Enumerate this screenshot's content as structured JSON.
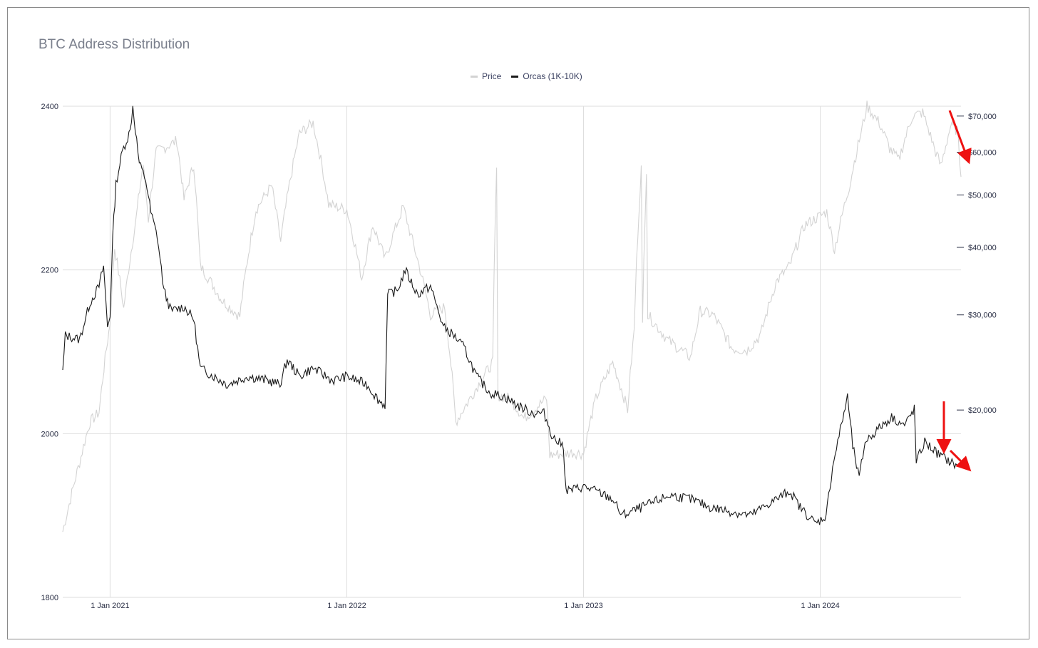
{
  "chart_data": {
    "type": "line",
    "title": "BTC Address Distribution",
    "x_tick_labels": [
      "1 Jan 2021",
      "1 Jan 2022",
      "1 Jan 2023",
      "1 Jan 2024"
    ],
    "xlim": [
      "2020-10-20",
      "2024-08-05"
    ],
    "y_left": {
      "range": [
        1800,
        2400
      ],
      "ticks": [
        1800,
        2000,
        2200,
        2400
      ]
    },
    "y_right": {
      "scale": "log",
      "range": [
        9000,
        73000
      ],
      "ticks": [
        20000,
        30000,
        40000,
        50000,
        60000,
        70000
      ],
      "tick_labels": [
        "$20,000",
        "$30,000",
        "$40,000",
        "$50,000",
        "$60,000",
        "$70,000"
      ]
    },
    "legend_position": "top-center",
    "grid": true,
    "colors": {
      "price": "#d3d3d3",
      "orcas": "#1a1a1a",
      "arrow": "#ee1111"
    },
    "series": [
      {
        "name": "Price",
        "axis": "right",
        "points": [
          [
            "2020-10-20",
            11900
          ],
          [
            "2020-11-01",
            13700
          ],
          [
            "2020-11-15",
            16000
          ],
          [
            "2020-12-01",
            19000
          ],
          [
            "2020-12-15",
            19800
          ],
          [
            "2021-01-01",
            29000
          ],
          [
            "2021-01-08",
            40000
          ],
          [
            "2021-01-22",
            30800
          ],
          [
            "2021-02-10",
            45000
          ],
          [
            "2021-02-21",
            57000
          ],
          [
            "2021-03-01",
            45000
          ],
          [
            "2021-03-13",
            60000
          ],
          [
            "2021-04-14",
            63000
          ],
          [
            "2021-04-25",
            49000
          ],
          [
            "2021-05-10",
            57000
          ],
          [
            "2021-05-20",
            37000
          ],
          [
            "2021-06-22",
            32000
          ],
          [
            "2021-07-20",
            29800
          ],
          [
            "2021-08-14",
            47000
          ],
          [
            "2021-09-07",
            52000
          ],
          [
            "2021-09-21",
            41000
          ],
          [
            "2021-10-20",
            65000
          ],
          [
            "2021-11-10",
            68000
          ],
          [
            "2021-12-04",
            48000
          ],
          [
            "2022-01-01",
            47000
          ],
          [
            "2022-01-24",
            35000
          ],
          [
            "2022-02-10",
            44000
          ],
          [
            "2022-03-01",
            38000
          ],
          [
            "2022-03-29",
            47500
          ],
          [
            "2022-04-10",
            42000
          ],
          [
            "2022-05-10",
            30000
          ],
          [
            "2022-06-01",
            31000
          ],
          [
            "2022-06-18",
            19000
          ],
          [
            "2022-07-10",
            21000
          ],
          [
            "2022-08-14",
            24500
          ],
          [
            "2022-08-20",
            56000
          ],
          [
            "2022-08-22",
            21300
          ],
          [
            "2022-09-10",
            21000
          ],
          [
            "2022-10-01",
            19300
          ],
          [
            "2022-11-05",
            21000
          ],
          [
            "2022-11-10",
            16500
          ],
          [
            "2022-12-15",
            16700
          ],
          [
            "2023-01-01",
            16600
          ],
          [
            "2023-01-20",
            21000
          ],
          [
            "2023-02-15",
            24500
          ],
          [
            "2023-03-10",
            20000
          ],
          [
            "2023-03-20",
            28000
          ],
          [
            "2023-03-31",
            56000
          ],
          [
            "2023-04-02",
            28500
          ],
          [
            "2023-04-08",
            56000
          ],
          [
            "2023-04-10",
            30000
          ],
          [
            "2023-05-10",
            27000
          ],
          [
            "2023-06-15",
            25000
          ],
          [
            "2023-06-30",
            30500
          ],
          [
            "2023-07-20",
            30000
          ],
          [
            "2023-08-18",
            26000
          ],
          [
            "2023-09-10",
            25800
          ],
          [
            "2023-10-01",
            27500
          ],
          [
            "2023-10-25",
            34500
          ],
          [
            "2023-11-15",
            37000
          ],
          [
            "2023-12-08",
            44000
          ],
          [
            "2024-01-11",
            46500
          ],
          [
            "2024-01-23",
            39500
          ],
          [
            "2024-02-15",
            52000
          ],
          [
            "2024-03-05",
            66000
          ],
          [
            "2024-03-13",
            73000
          ],
          [
            "2024-04-01",
            68000
          ],
          [
            "2024-04-17",
            61000
          ],
          [
            "2024-05-01",
            58000
          ],
          [
            "2024-05-22",
            70000
          ],
          [
            "2024-06-07",
            71000
          ],
          [
            "2024-06-25",
            61000
          ],
          [
            "2024-07-05",
            56500
          ],
          [
            "2024-07-20",
            67000
          ],
          [
            "2024-07-30",
            66000
          ],
          [
            "2024-08-05",
            54000
          ]
        ]
      },
      {
        "name": "Orcas (1K-10K)",
        "axis": "left",
        "points": [
          [
            "2020-10-20",
            2075
          ],
          [
            "2020-10-24",
            2120
          ],
          [
            "2020-11-15",
            2115
          ],
          [
            "2020-12-01",
            2160
          ],
          [
            "2020-12-15",
            2180
          ],
          [
            "2020-12-22",
            2205
          ],
          [
            "2020-12-28",
            2130
          ],
          [
            "2021-01-01",
            2145
          ],
          [
            "2021-01-05",
            2240
          ],
          [
            "2021-01-10",
            2305
          ],
          [
            "2021-01-20",
            2345
          ],
          [
            "2021-02-01",
            2370
          ],
          [
            "2021-02-05",
            2400
          ],
          [
            "2021-02-15",
            2330
          ],
          [
            "2021-02-25",
            2310
          ],
          [
            "2021-03-05",
            2270
          ],
          [
            "2021-03-15",
            2240
          ],
          [
            "2021-03-25",
            2175
          ],
          [
            "2021-04-05",
            2150
          ],
          [
            "2021-04-25",
            2155
          ],
          [
            "2021-05-10",
            2140
          ],
          [
            "2021-05-20",
            2080
          ],
          [
            "2021-06-10",
            2070
          ],
          [
            "2021-07-01",
            2060
          ],
          [
            "2021-08-01",
            2070
          ],
          [
            "2021-09-01",
            2065
          ],
          [
            "2021-09-20",
            2060
          ],
          [
            "2021-10-01",
            2090
          ],
          [
            "2021-10-20",
            2070
          ],
          [
            "2021-11-10",
            2080
          ],
          [
            "2021-12-10",
            2065
          ],
          [
            "2022-01-01",
            2070
          ],
          [
            "2022-02-01",
            2060
          ],
          [
            "2022-02-20",
            2040
          ],
          [
            "2022-03-01",
            2035
          ],
          [
            "2022-03-05",
            2170
          ],
          [
            "2022-03-20",
            2175
          ],
          [
            "2022-04-01",
            2200
          ],
          [
            "2022-04-20",
            2170
          ],
          [
            "2022-05-10",
            2180
          ],
          [
            "2022-05-30",
            2130
          ],
          [
            "2022-06-15",
            2120
          ],
          [
            "2022-07-01",
            2105
          ],
          [
            "2022-07-20",
            2070
          ],
          [
            "2022-08-10",
            2050
          ],
          [
            "2022-09-01",
            2045
          ],
          [
            "2022-09-20",
            2035
          ],
          [
            "2022-10-15",
            2025
          ],
          [
            "2022-11-01",
            2025
          ],
          [
            "2022-11-15",
            1995
          ],
          [
            "2022-12-01",
            1985
          ],
          [
            "2022-12-05",
            1930
          ],
          [
            "2023-01-01",
            1935
          ],
          [
            "2023-01-20",
            1930
          ],
          [
            "2023-02-15",
            1920
          ],
          [
            "2023-03-01",
            1900
          ],
          [
            "2023-04-01",
            1910
          ],
          [
            "2023-05-15",
            1925
          ],
          [
            "2023-06-15",
            1920
          ],
          [
            "2023-07-15",
            1910
          ],
          [
            "2023-08-15",
            1905
          ],
          [
            "2023-09-15",
            1900
          ],
          [
            "2023-10-15",
            1915
          ],
          [
            "2023-11-15",
            1930
          ],
          [
            "2023-12-01",
            1910
          ],
          [
            "2023-12-25",
            1890
          ],
          [
            "2024-01-10",
            1900
          ],
          [
            "2024-01-20",
            1960
          ],
          [
            "2024-02-01",
            2005
          ],
          [
            "2024-02-12",
            2045
          ],
          [
            "2024-02-20",
            1985
          ],
          [
            "2024-03-01",
            1945
          ],
          [
            "2024-03-10",
            1990
          ],
          [
            "2024-04-05",
            2010
          ],
          [
            "2024-04-20",
            2020
          ],
          [
            "2024-05-10",
            2010
          ],
          [
            "2024-05-25",
            2030
          ],
          [
            "2024-05-28",
            1965
          ],
          [
            "2024-06-10",
            1990
          ],
          [
            "2024-07-01",
            1975
          ],
          [
            "2024-07-20",
            1965
          ],
          [
            "2024-08-01",
            1960
          ]
        ]
      }
    ]
  }
}
